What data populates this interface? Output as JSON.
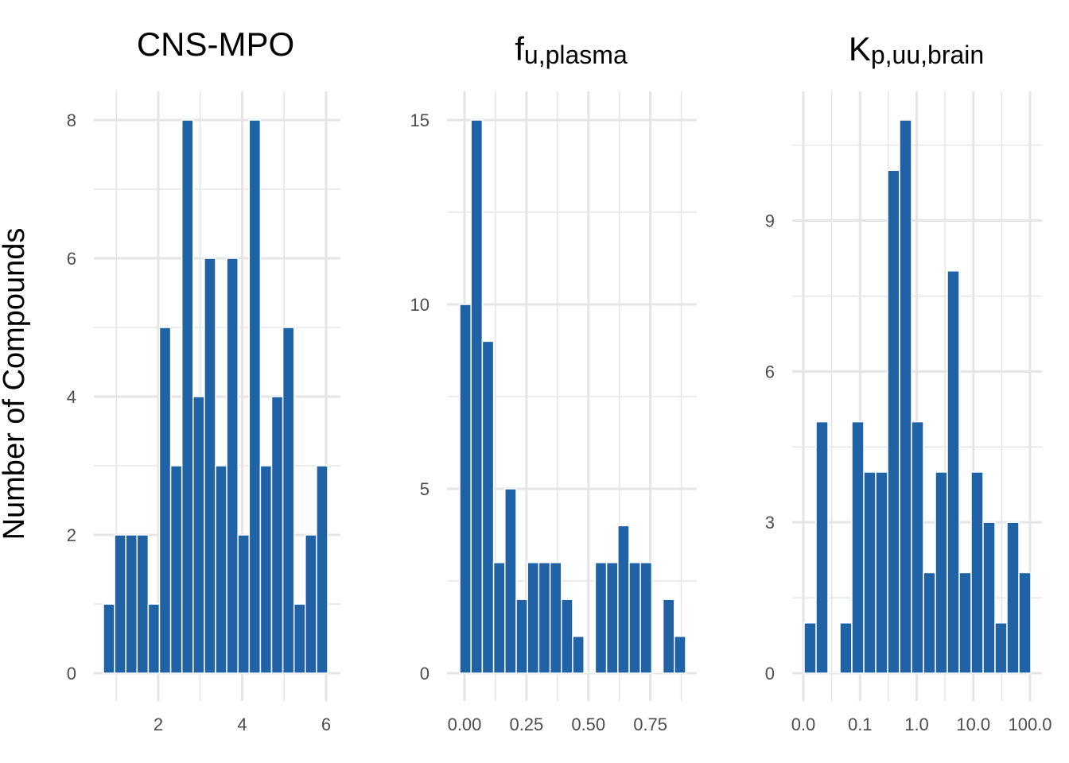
{
  "chart_data": {
    "type": "bar",
    "ylabel": "Number of Compounds",
    "bar_color": "#1f63a6",
    "grid_color": "#e5e5e5",
    "panels": [
      {
        "title": "CNS-MPO",
        "title_sub": "",
        "xlim": [
          0.69,
          6.03
        ],
        "xticks": [
          2,
          4,
          6
        ],
        "xtick_labels": [
          "2",
          "4",
          "6"
        ],
        "xminor": [
          1,
          3,
          5
        ],
        "ylim": [
          0,
          8
        ],
        "yticks": [
          0,
          2,
          4,
          6,
          8
        ],
        "yminor": [
          1,
          3,
          5,
          7
        ],
        "values": [
          1,
          2,
          2,
          2,
          1,
          5,
          3,
          8,
          4,
          6,
          3,
          6,
          2,
          8,
          3,
          4,
          5,
          1,
          2,
          3
        ]
      },
      {
        "title": "f",
        "title_sub": "u,plasma",
        "xlim": [
          -0.02,
          0.89
        ],
        "xticks": [
          0,
          0.25,
          0.5,
          0.75
        ],
        "xtick_labels": [
          "0.00",
          "0.25",
          "0.50",
          "0.75"
        ],
        "xminor": [
          0.125,
          0.375,
          0.625,
          0.875
        ],
        "ylim": [
          0,
          15
        ],
        "yticks": [
          0,
          5,
          10,
          15
        ],
        "yminor": [
          2.5,
          7.5,
          12.5
        ],
        "values": [
          10,
          15,
          9,
          3,
          5,
          2,
          3,
          3,
          3,
          2,
          1,
          0,
          3,
          3,
          4,
          3,
          3,
          0,
          2,
          1
        ]
      },
      {
        "title": "K",
        "title_sub": "p,uu,brain",
        "xscale": "log-index",
        "xlim": [
          0,
          4
        ],
        "xticks": [
          0,
          1,
          2,
          3,
          4
        ],
        "xtick_labels": [
          "0.0",
          "0.1",
          "1.0",
          "10.0",
          "100.0"
        ],
        "xminor": [
          0.5,
          1.5,
          2.5,
          3.5
        ],
        "ylim": [
          0,
          11
        ],
        "yticks": [
          0,
          3,
          6,
          9
        ],
        "yminor": [
          1.5,
          4.5,
          7.5,
          10.5
        ],
        "values": [
          1,
          5,
          0,
          1,
          5,
          4,
          4,
          10,
          11,
          5,
          2,
          4,
          8,
          2,
          4,
          3,
          1,
          3,
          2
        ]
      }
    ]
  }
}
